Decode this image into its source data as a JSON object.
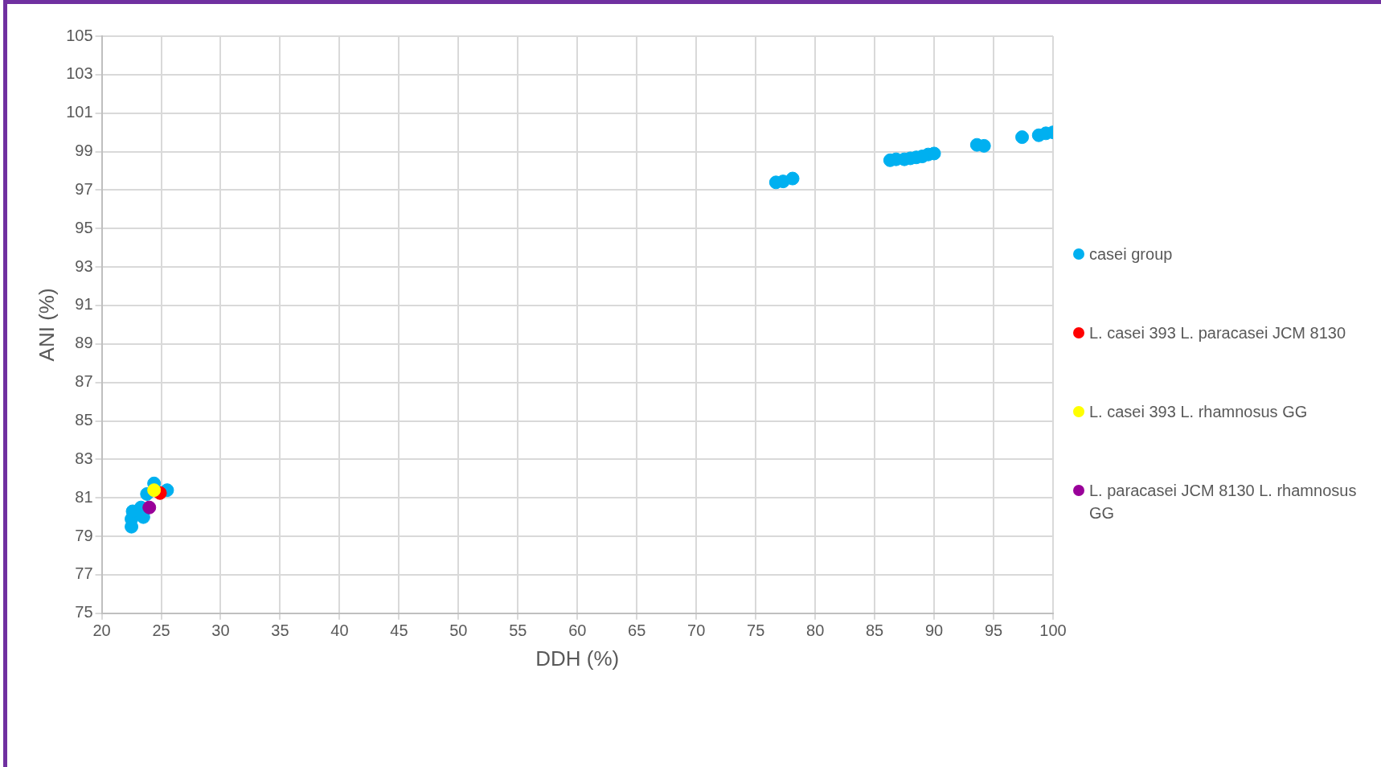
{
  "chart_data": {
    "type": "scatter",
    "xlabel": "DDH (%)",
    "ylabel": "ANI (%)",
    "xlim": [
      20,
      100
    ],
    "xticks": [
      20,
      25,
      30,
      35,
      40,
      45,
      50,
      55,
      60,
      65,
      70,
      75,
      80,
      85,
      90,
      95,
      100
    ],
    "ylim": [
      75,
      105
    ],
    "yticks": [
      75,
      77,
      79,
      81,
      83,
      85,
      87,
      89,
      91,
      93,
      95,
      97,
      99,
      101,
      103,
      105
    ],
    "grid": true,
    "legend": "right",
    "marker": "circle",
    "series": [
      {
        "name": "casei group",
        "color": "#00b0f0",
        "x": [
          22.5,
          22.5,
          22.6,
          23.3,
          23.5,
          23.8,
          24.4,
          25.5,
          76.7,
          77.3,
          78.1,
          86.3,
          86.8,
          87.5,
          88.0,
          88.5,
          89.0,
          89.5,
          90.0,
          93.6,
          94.2,
          97.4,
          98.8,
          99.4,
          100
        ],
        "values": [
          79.5,
          79.9,
          80.3,
          80.5,
          80.0,
          81.2,
          81.75,
          81.4,
          97.4,
          97.45,
          97.6,
          98.55,
          98.6,
          98.6,
          98.65,
          98.7,
          98.75,
          98.85,
          98.9,
          99.35,
          99.3,
          99.75,
          99.85,
          99.95,
          100.0
        ]
      },
      {
        "name": "L. casei 393 L. paracasei JCM 8130",
        "color": "#ff0000",
        "x": [
          24.9
        ],
        "values": [
          81.25
        ]
      },
      {
        "name": "L. casei 393 L. rhamnosus GG",
        "color": "#ffff00",
        "x": [
          24.4
        ],
        "values": [
          81.4
        ]
      },
      {
        "name": "L. paracasei JCM 8130 L. rhamnosus GG",
        "color": "#990099",
        "x": [
          24.0
        ],
        "values": [
          80.5
        ]
      }
    ]
  }
}
